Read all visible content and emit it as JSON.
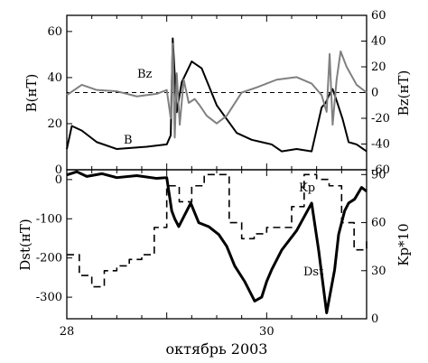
{
  "chart_data": [
    {
      "type": "line",
      "panel": "top",
      "xlim": [
        28,
        31
      ],
      "ylim_left": [
        0,
        67
      ],
      "ylim_right": [
        -60,
        60
      ],
      "ylabel_left": "B(нТ)",
      "ylabel_right": "Bz(нТ)",
      "yticks_left": [
        "0",
        "20",
        "40",
        "60"
      ],
      "yticks_right": [
        "-60",
        "-40",
        "-20",
        "0",
        "20",
        "40",
        "60"
      ],
      "zero_line": "Bz = 0 (dashed)",
      "series": [
        {
          "name": "B",
          "axis": "left",
          "color": "#000000",
          "x": [
            28.0,
            28.05,
            28.15,
            28.3,
            28.5,
            28.8,
            29.0,
            29.04,
            29.06,
            29.1,
            29.15,
            29.25,
            29.35,
            29.5,
            29.7,
            29.85,
            29.95,
            30.05,
            30.15,
            30.3,
            30.45,
            30.55,
            30.59,
            30.62,
            30.66,
            30.7,
            30.76,
            30.82,
            30.9,
            31.0
          ],
          "y": [
            9,
            19,
            17,
            12,
            9,
            10,
            11,
            15,
            57,
            25,
            38,
            47,
            44,
            28,
            16,
            13,
            12,
            11,
            8,
            9,
            8,
            27,
            29,
            32,
            35,
            30,
            22,
            12,
            11,
            8
          ]
        },
        {
          "name": "Bz",
          "axis": "right",
          "color": "#808080",
          "x": [
            28.0,
            28.15,
            28.3,
            28.5,
            28.7,
            28.9,
            29.0,
            29.04,
            29.06,
            29.08,
            29.1,
            29.13,
            29.17,
            29.22,
            29.28,
            29.33,
            29.4,
            29.5,
            29.6,
            29.75,
            29.9,
            30.1,
            30.3,
            30.45,
            30.55,
            30.6,
            30.63,
            30.66,
            30.7,
            30.74,
            30.8,
            30.9,
            31.0
          ],
          "y": [
            -2,
            6,
            2,
            1,
            -3,
            -1,
            2,
            -20,
            38,
            -35,
            15,
            -25,
            10,
            -8,
            -5,
            -10,
            -18,
            -24,
            -18,
            0,
            4,
            10,
            12,
            7,
            -2,
            -15,
            30,
            -25,
            10,
            32,
            20,
            6,
            0
          ]
        }
      ]
    },
    {
      "type": "line",
      "panel": "bottom",
      "xlim": [
        28,
        31
      ],
      "ylim_left": [
        -355,
        25
      ],
      "ylim_right": [
        0,
        93
      ],
      "ylabel_left": "Dst(нТ)",
      "ylabel_right": "Kp*10",
      "yticks_left": [
        "0",
        "-100",
        "-200",
        "-300"
      ],
      "yticks_right": [
        "0",
        "30",
        "60",
        "90"
      ],
      "xticks": [
        "28",
        "30"
      ],
      "xlabel": "октябрь 2003",
      "series": [
        {
          "name": "Dst",
          "axis": "left",
          "color": "#000000",
          "style": "solid",
          "x": [
            28.0,
            28.1,
            28.2,
            28.35,
            28.5,
            28.7,
            28.9,
            29.0,
            29.05,
            29.08,
            29.12,
            29.18,
            29.24,
            29.32,
            29.42,
            29.52,
            29.6,
            29.68,
            29.78,
            29.88,
            29.95,
            30.0,
            30.05,
            30.15,
            30.3,
            30.45,
            30.52,
            30.6,
            30.68,
            30.72,
            30.78,
            30.82,
            30.88,
            30.95,
            31.0
          ],
          "y": [
            12,
            20,
            8,
            15,
            5,
            10,
            3,
            5,
            -80,
            -100,
            -120,
            -90,
            -60,
            -110,
            -120,
            -140,
            -170,
            -220,
            -260,
            -310,
            -300,
            -260,
            -230,
            -180,
            -130,
            -60,
            -180,
            -340,
            -230,
            -140,
            -80,
            -60,
            -50,
            -20,
            -30
          ]
        },
        {
          "name": "Kp",
          "axis": "right",
          "color": "#000000",
          "style": "dashed",
          "step": true,
          "x": [
            28.0,
            28.125,
            28.25,
            28.375,
            28.5,
            28.625,
            28.75,
            28.875,
            29.0,
            29.125,
            29.25,
            29.375,
            29.5,
            29.625,
            29.75,
            29.875,
            30.0,
            30.125,
            30.25,
            30.375,
            30.5,
            30.625,
            30.75,
            30.875,
            31.0
          ],
          "y": [
            40,
            27,
            20,
            30,
            33,
            37,
            40,
            57,
            83,
            73,
            83,
            90,
            90,
            60,
            50,
            53,
            57,
            57,
            70,
            90,
            87,
            83,
            60,
            43,
            50
          ]
        }
      ]
    }
  ],
  "labels": {
    "top_b": "B",
    "top_bz": "Bz",
    "bottom_dst": "Dst",
    "bottom_kp": "Kp"
  }
}
